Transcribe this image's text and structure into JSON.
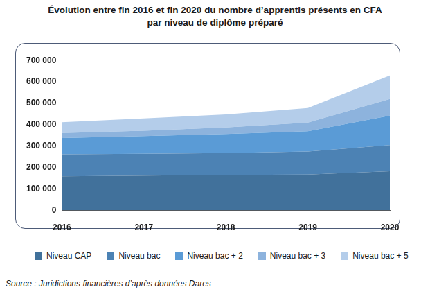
{
  "chart_data": {
    "type": "area",
    "title": [
      "Évolution entre fin 2016 et fin 2020 du nombre d’apprentis présents en CFA",
      "par niveau de diplôme préparé"
    ],
    "source": "Source : Juridictions financières d’après données Dares",
    "categories": [
      "2016",
      "2017",
      "2018",
      "2019",
      "2020"
    ],
    "stacked": true,
    "grid": false,
    "legend": "bottom",
    "ylim": [
      0,
      700000
    ],
    "yticks": [
      0,
      {
        "value": 100000,
        "label": "100 000"
      },
      {
        "value": 200000,
        "label": "200 000"
      },
      {
        "value": 300000,
        "label": "300 000"
      },
      {
        "value": 400000,
        "label": "400 000"
      },
      {
        "value": 500000,
        "label": "500 000"
      },
      {
        "value": 600000,
        "label": "600 000"
      },
      {
        "value": 700000,
        "label": "700 000"
      }
    ],
    "series": [
      {
        "name": "Niveau CAP",
        "color": "#41719b",
        "values": [
          160000,
          163000,
          166000,
          168000,
          183000
        ]
      },
      {
        "name": "Niveau bac",
        "color": "#4c82b4",
        "values": [
          102000,
          102000,
          102000,
          107000,
          122000
        ]
      },
      {
        "name": "Niveau bac + 2",
        "color": "#5a9bd6",
        "values": [
          76000,
          82000,
          89000,
          95000,
          138000
        ]
      },
      {
        "name": "Niveau bac + 3",
        "color": "#8db3dd",
        "values": [
          24000,
          25000,
          31000,
          40000,
          77000
        ]
      },
      {
        "name": "Niveau bac + 5",
        "color": "#b4cdea",
        "values": [
          50000,
          58000,
          60000,
          68000,
          110000
        ]
      }
    ]
  }
}
